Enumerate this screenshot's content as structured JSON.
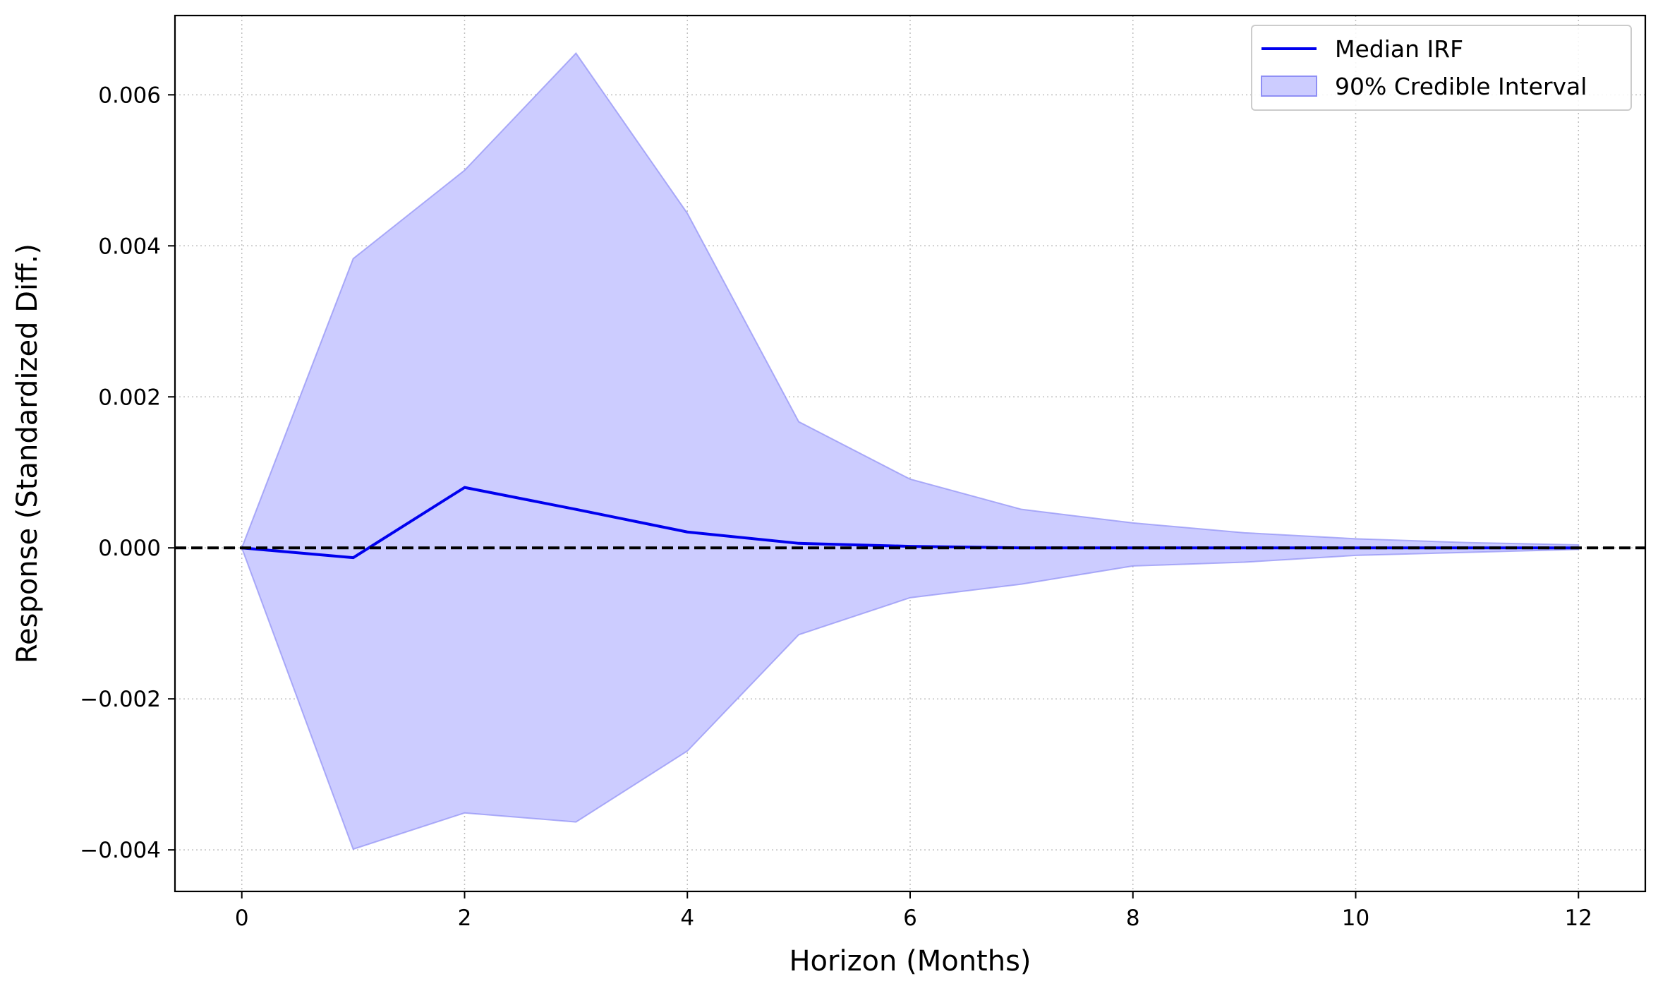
{
  "chart_data": {
    "type": "line",
    "title": "",
    "xlabel": "Horizon (Months)",
    "ylabel": "Response (Standardized Diff.)",
    "xlim": [
      -0.6,
      12.6
    ],
    "ylim": [
      -0.00455,
      0.00705
    ],
    "x_ticks": [
      0,
      2,
      4,
      6,
      8,
      10,
      12
    ],
    "x_tick_labels": [
      "0",
      "2",
      "4",
      "6",
      "8",
      "10",
      "12"
    ],
    "y_ticks": [
      -0.004,
      -0.002,
      0.0,
      0.002,
      0.004,
      0.006
    ],
    "y_tick_labels": [
      "−0.004",
      "−0.002",
      "0.000",
      "0.002",
      "0.004",
      "0.006"
    ],
    "grid": true,
    "legend_position": "top-right",
    "x": [
      0,
      1,
      2,
      3,
      4,
      5,
      6,
      7,
      8,
      9,
      10,
      11,
      12
    ],
    "series": [
      {
        "name": "Median IRF",
        "kind": "line",
        "color": "#0000ee",
        "values": [
          0.0,
          -0.00013,
          0.0008,
          0.00051,
          0.00021,
          6e-05,
          2e-05,
          0.0,
          0.0,
          0.0,
          0.0,
          0.0,
          0.0
        ]
      },
      {
        "name": "90% Credible Interval",
        "kind": "band",
        "color": "#ccccff",
        "lower": [
          0.0,
          -0.00399,
          -0.00351,
          -0.00363,
          -0.00269,
          -0.00115,
          -0.00066,
          -0.00048,
          -0.00024,
          -0.00019,
          -0.0001,
          -6e-05,
          -2e-05
        ],
        "upper": [
          0.0,
          0.00383,
          0.005,
          0.00655,
          0.00443,
          0.00167,
          0.00091,
          0.00051,
          0.00033,
          0.0002,
          0.00012,
          7e-05,
          4e-05
        ]
      }
    ],
    "reference_line": {
      "y": 0.0,
      "style": "dashed",
      "color": "#000000"
    }
  }
}
